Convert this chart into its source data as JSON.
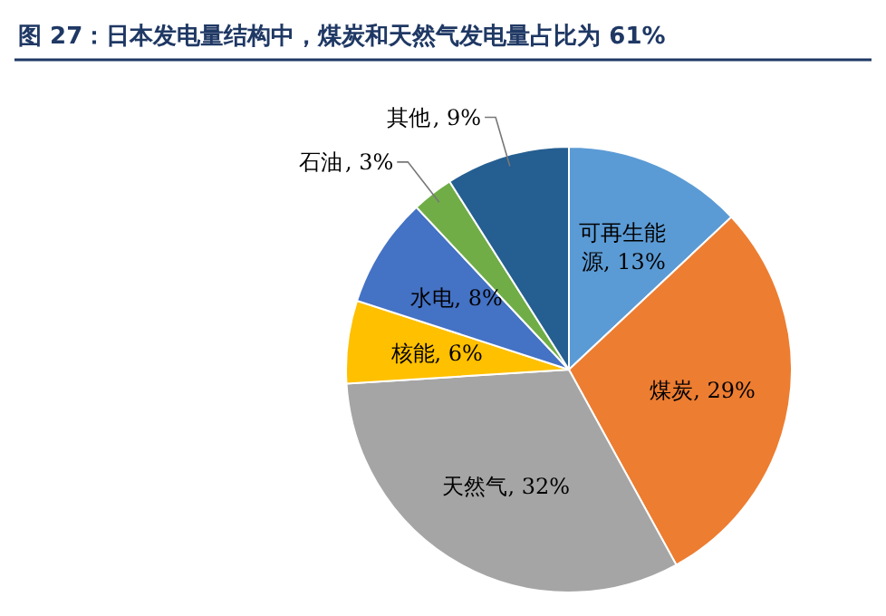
{
  "chart_data": {
    "type": "pie",
    "title": "图 27：日本发电量结构中，煤炭和天然气发电量占比为 61%",
    "categories": [
      "可再生能源",
      "煤炭",
      "天然气",
      "核能",
      "水电",
      "石油",
      "其他"
    ],
    "values": [
      13,
      29,
      32,
      6,
      8,
      3,
      9
    ],
    "value_labels": [
      ", 13%",
      ", 29%",
      ", 32%",
      ", 6%",
      ", 8%",
      ", 3%",
      ", 9%"
    ],
    "colors": [
      "#5b9bd5",
      "#ed7d31",
      "#a5a5a5",
      "#ffc000",
      "#4472c4",
      "#70ad47",
      "#255e91"
    ]
  }
}
